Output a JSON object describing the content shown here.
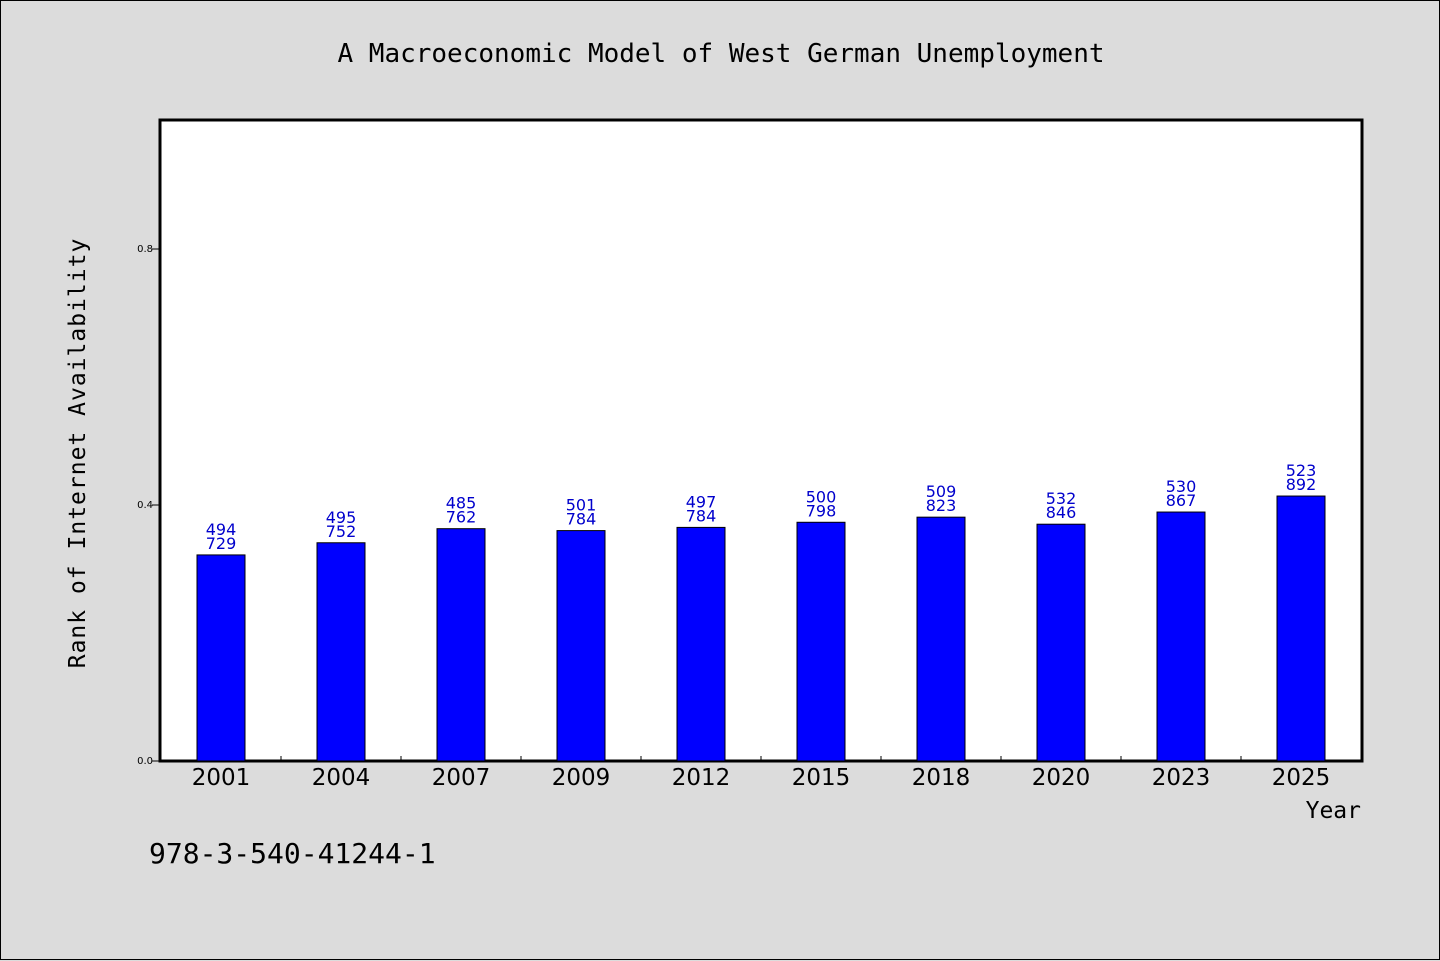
{
  "chart_data": {
    "type": "bar",
    "title": "A Macroeconomic Model of West German Unemployment",
    "xlabel": "Year",
    "ylabel": "Rank of Internet Availability",
    "categories": [
      "2001",
      "2004",
      "2007",
      "2009",
      "2012",
      "2015",
      "2018",
      "2020",
      "2023",
      "2025"
    ],
    "values": [
      0.322,
      0.341,
      0.363,
      0.36,
      0.365,
      0.373,
      0.381,
      0.37,
      0.389,
      0.414
    ],
    "label_top": [
      "494",
      "495",
      "485",
      "501",
      "497",
      "500",
      "509",
      "532",
      "530",
      "523"
    ],
    "label_bottom": [
      "729",
      "752",
      "762",
      "784",
      "784",
      "798",
      "823",
      "846",
      "867",
      "892"
    ],
    "ylim": [
      0.0,
      1.0
    ],
    "yticks": [
      0.0,
      0.4,
      0.8
    ],
    "ytick_labels": [
      "0.0",
      "0.4",
      "0.8"
    ],
    "bar_color": "#0000ff",
    "label_color": "#0000cc",
    "background": "#dcdcdc",
    "plot_background": "#ffffff",
    "grid": false,
    "legend": "none"
  },
  "footnote": "978-3-540-41244-1"
}
